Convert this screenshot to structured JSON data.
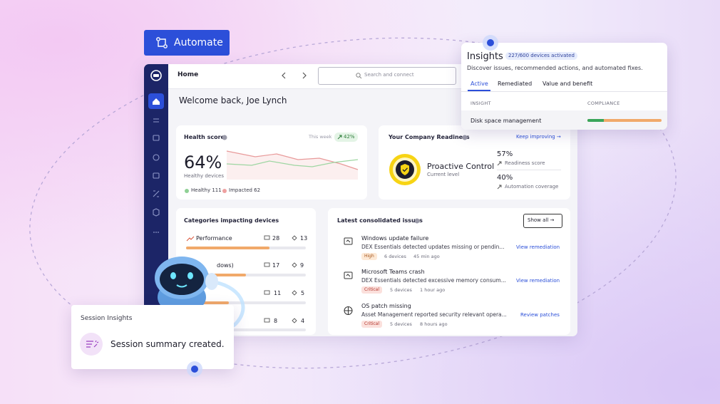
{
  "automate_button": "Automate",
  "top_bar": {
    "title": "Home",
    "search": "Search and connect"
  },
  "welcome": "Welcome back, Joe Lynch",
  "health": {
    "title": "Health score",
    "period": "This week",
    "change": "42%",
    "value": "64%",
    "caption": "Healthy devices",
    "legend": [
      "Healthy 111",
      "Impacted 62"
    ]
  },
  "readiness": {
    "title": "Your Company Readiness",
    "link": "Keep improving →",
    "level": "Proactive Control",
    "level_caption": "Current level",
    "stats": [
      {
        "value": "57%",
        "label": "Readiness score"
      },
      {
        "value": "40%",
        "label": "Automation coverage"
      }
    ]
  },
  "categories": {
    "title": "Categories impacting devices",
    "rows": [
      {
        "label": "Performance",
        "devices": "28",
        "issues": "13"
      },
      {
        "label": "dows)",
        "devices": "17",
        "issues": "9"
      },
      {
        "devices": "11",
        "issues": "5"
      },
      {
        "devices": "8",
        "issues": "4"
      }
    ]
  },
  "issues": {
    "title": "Latest consolidated issues",
    "show_all": "Show all →",
    "items": [
      {
        "title": "Windows update failure",
        "description": "DEX Essentials detected updates missing or pendin...",
        "severity": "High",
        "devices": "6 devices",
        "time": "45 min ago",
        "action": "View remediation"
      },
      {
        "title": "Microsoft Teams crash",
        "description": "DEX Essentials detected excessive memory consum...",
        "severity": "Critical",
        "devices": "5 devices",
        "time": "1 hour ago",
        "action": "View remediation"
      },
      {
        "title": "OS patch missing",
        "description": "Asset Management reported security relevant opera...",
        "severity": "Critical",
        "devices": "5 devices",
        "time": "8 hours ago",
        "action": "Review patches"
      }
    ]
  },
  "insights": {
    "title": "Insights",
    "badge": "227/600 devices activated",
    "description": "Discover issues, recommended actions, and automated fixes.",
    "tabs": [
      "Active",
      "Remediated",
      "Value and benefit"
    ],
    "columns": [
      "INSIGHT",
      "COMPLIANCE"
    ],
    "rows": [
      "Disk space management"
    ]
  },
  "session": {
    "title": "Session Insights",
    "message": "Session summary created."
  }
}
